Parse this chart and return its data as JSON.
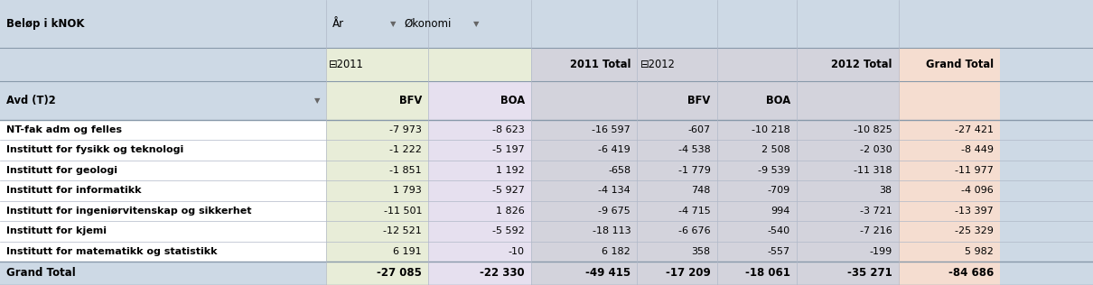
{
  "rows": [
    [
      "NT-fak adm og felles",
      "-7 973",
      "-8 623",
      "-16 597",
      "-607",
      "-10 218",
      "-10 825",
      "-27 421"
    ],
    [
      "Institutt for fysikk og teknologi",
      "-1 222",
      "-5 197",
      "-6 419",
      "-4 538",
      "2 508",
      "-2 030",
      "-8 449"
    ],
    [
      "Institutt for geologi",
      "-1 851",
      "1 192",
      "-658",
      "-1 779",
      "-9 539",
      "-11 318",
      "-11 977"
    ],
    [
      "Institutt for informatikk",
      "1 793",
      "-5 927",
      "-4 134",
      "748",
      "-709",
      "38",
      "-4 096"
    ],
    [
      "Institutt for ingeniørvitenskap og sikkerhet",
      "-11 501",
      "1 826",
      "-9 675",
      "-4 715",
      "994",
      "-3 721",
      "-13 397"
    ],
    [
      "Institutt for kjemi",
      "-12 521",
      "-5 592",
      "-18 113",
      "-6 676",
      "-540",
      "-7 216",
      "-25 329"
    ],
    [
      "Institutt for matematikk og statistikk",
      "6 191",
      "-10",
      "6 182",
      "358",
      "-557",
      "-199",
      "5 982"
    ]
  ],
  "grand_total_row": [
    "Grand Total",
    "-27 085",
    "-22 330",
    "-49 415",
    "-17 209",
    "-18 061",
    "-35 271",
    "-84 686"
  ],
  "bg_header": "#cdd9e5",
  "bg_bfv2011": "#e8edd8",
  "bg_boa2011": "#e6e0ef",
  "bg_total2011": "#d3d3dc",
  "bg_bfv2012": "#d3d3dc",
  "bg_boa2012": "#d3d3dc",
  "bg_total2012": "#d3d3dc",
  "bg_grand": "#f5ddd0",
  "bg_white": "#ffffff",
  "line_color": "#b0b8c8",
  "border_color": "#8899aa",
  "figsize": [
    12.1,
    3.16
  ],
  "dpi": 100
}
